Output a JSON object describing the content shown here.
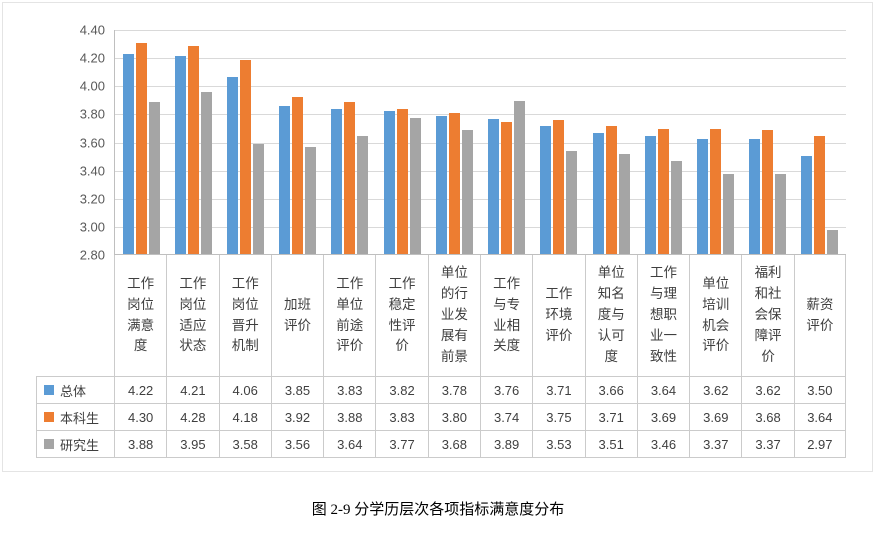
{
  "chart_data": {
    "type": "bar",
    "caption": "图 2-9 分学历层次各项指标满意度分布",
    "categories": [
      "工作岗位满意度",
      "工作岗位适应状态",
      "工作岗位晋升机制",
      "加班评价",
      "工作单位前途评价",
      "工作稳定性评价",
      "单位的行业发展有前景",
      "工作与专业相关度",
      "工作环境评价",
      "单位知名度与认可度",
      "工作与理想职业一致性",
      "单位培训机会评价",
      "福利和社会保障评价",
      "薪资评价"
    ],
    "series": [
      {
        "name": "总体",
        "color": "#5B9BD5",
        "values": [
          4.22,
          4.21,
          4.06,
          3.85,
          3.83,
          3.82,
          3.78,
          3.76,
          3.71,
          3.66,
          3.64,
          3.62,
          3.62,
          3.5
        ]
      },
      {
        "name": "本科生",
        "color": "#ED7D31",
        "values": [
          4.3,
          4.28,
          4.18,
          3.92,
          3.88,
          3.83,
          3.8,
          3.74,
          3.75,
          3.71,
          3.69,
          3.69,
          3.68,
          3.64
        ]
      },
      {
        "name": "研究生",
        "color": "#A5A5A5",
        "values": [
          3.88,
          3.95,
          3.58,
          3.56,
          3.64,
          3.77,
          3.68,
          3.89,
          3.53,
          3.51,
          3.46,
          3.37,
          3.37,
          2.97
        ]
      }
    ],
    "y_axis": {
      "min": 2.8,
      "max": 4.4,
      "step": 0.2,
      "ticks": [
        "4.40",
        "4.20",
        "4.00",
        "3.80",
        "3.60",
        "3.40",
        "3.20",
        "3.00",
        "2.80"
      ]
    },
    "grid": true,
    "legend_position": "table-left",
    "value_format_decimals": 2
  }
}
